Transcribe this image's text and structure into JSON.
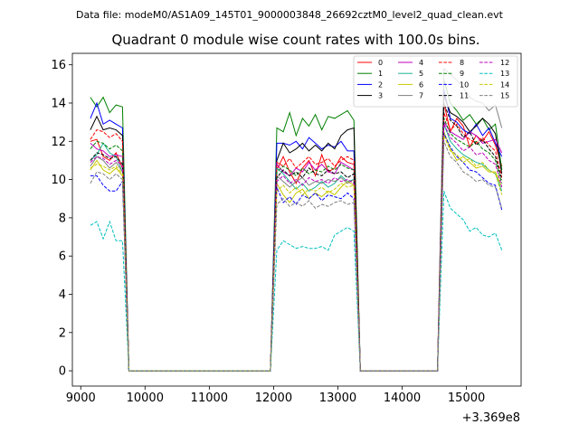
{
  "chart_data": {
    "type": "line",
    "suptitle": "Data file: modeM0/AS1A09_145T01_9000003848_26692cztM0_level2_quad_clean.evt",
    "title": "Quadrant 0 module wise count rates with 100.0s bins.",
    "xlabel": "",
    "ylabel": "",
    "x_offset_label": "+3.369e8",
    "xlim": [
      8870,
      15850
    ],
    "ylim": [
      -0.8,
      16.6
    ],
    "xticks": [
      9000,
      10000,
      11000,
      12000,
      13000,
      14000,
      15000
    ],
    "yticks": [
      0,
      2,
      4,
      6,
      8,
      10,
      12,
      14,
      16
    ],
    "grid": false,
    "legend_position": "top-right",
    "x": [
      9150,
      9250,
      9350,
      9450,
      9550,
      9650,
      9750,
      9850,
      9950,
      10050,
      10150,
      10250,
      10350,
      10450,
      10550,
      10650,
      10750,
      10850,
      10950,
      11050,
      11150,
      11250,
      11350,
      11450,
      11550,
      11650,
      11750,
      11850,
      11950,
      12050,
      12150,
      12250,
      12350,
      12450,
      12550,
      12650,
      12750,
      12850,
      12950,
      13050,
      13150,
      13250,
      13350,
      13450,
      13550,
      13650,
      13750,
      13850,
      13950,
      14050,
      14150,
      14250,
      14350,
      14450,
      14550,
      14650,
      14750,
      14850,
      14950,
      15050,
      15150,
      15250,
      15350,
      15450,
      15550
    ],
    "series": [
      {
        "name": "0",
        "color": "#ff0000",
        "dash": false,
        "values": [
          12.0,
          12.1,
          11.2,
          11.0,
          11.4,
          10.6,
          0,
          0,
          0,
          0,
          0,
          0,
          0,
          0,
          0,
          0,
          0,
          0,
          0,
          0,
          0,
          0,
          0,
          0,
          0,
          0,
          0,
          0,
          0,
          10.5,
          11.2,
          10.4,
          9.8,
          10.6,
          11.0,
          10.2,
          11.3,
          10.4,
          10.6,
          11.2,
          10.9,
          10.8,
          0,
          0,
          0,
          0,
          0,
          0,
          0,
          0,
          0,
          0,
          0,
          0,
          0,
          14.0,
          12.5,
          13.2,
          12.8,
          11.7,
          12.3,
          12.0,
          12.5,
          11.8,
          10.7
        ]
      },
      {
        "name": "1",
        "color": "#008000",
        "dash": false,
        "values": [
          14.3,
          13.8,
          14.3,
          13.5,
          13.9,
          13.8,
          0,
          0,
          0,
          0,
          0,
          0,
          0,
          0,
          0,
          0,
          0,
          0,
          0,
          0,
          0,
          0,
          0,
          0,
          0,
          0,
          0,
          0,
          0,
          12.7,
          12.5,
          13.5,
          12.3,
          13.2,
          12.8,
          13.4,
          12.6,
          13.3,
          13.2,
          13.4,
          13.6,
          13.1,
          0,
          0,
          0,
          0,
          0,
          0,
          0,
          0,
          0,
          0,
          0,
          0,
          0,
          15.2,
          14.0,
          13.6,
          13.1,
          13.4,
          12.9,
          13.2,
          12.6,
          12.9,
          10.5
        ]
      },
      {
        "name": "2",
        "color": "#0000ff",
        "dash": false,
        "values": [
          13.2,
          14.0,
          12.9,
          13.1,
          12.9,
          12.7,
          0,
          0,
          0,
          0,
          0,
          0,
          0,
          0,
          0,
          0,
          0,
          0,
          0,
          0,
          0,
          0,
          0,
          0,
          0,
          0,
          0,
          0,
          0,
          11.9,
          11.9,
          11.8,
          12.0,
          11.6,
          12.2,
          11.9,
          11.6,
          11.8,
          11.7,
          12.0,
          11.5,
          11.5,
          0,
          0,
          0,
          0,
          0,
          0,
          0,
          0,
          0,
          0,
          0,
          0,
          0,
          14.7,
          13.2,
          13.0,
          12.6,
          12.4,
          12.9,
          12.3,
          12.7,
          11.9,
          11.2
        ]
      },
      {
        "name": "3",
        "color": "#000000",
        "dash": false,
        "values": [
          12.6,
          13.3,
          12.6,
          12.7,
          12.6,
          12.3,
          0,
          0,
          0,
          0,
          0,
          0,
          0,
          0,
          0,
          0,
          0,
          0,
          0,
          0,
          0,
          0,
          0,
          0,
          0,
          0,
          0,
          0,
          0,
          11.0,
          11.9,
          11.4,
          11.6,
          11.9,
          11.5,
          11.8,
          11.5,
          11.9,
          11.6,
          12.3,
          12.6,
          12.7,
          0,
          0,
          0,
          0,
          0,
          0,
          0,
          0,
          0,
          0,
          0,
          0,
          0,
          14.4,
          13.5,
          13.3,
          13.0,
          12.5,
          12.8,
          13.2,
          12.9,
          12.4,
          10.3
        ]
      },
      {
        "name": "4",
        "color": "#bf00bf",
        "dash": false,
        "values": [
          11.9,
          11.6,
          11.5,
          11.2,
          11.3,
          11.2,
          0,
          0,
          0,
          0,
          0,
          0,
          0,
          0,
          0,
          0,
          0,
          0,
          0,
          0,
          0,
          0,
          0,
          0,
          0,
          0,
          0,
          0,
          0,
          10.8,
          10.4,
          10.2,
          10.6,
          10.4,
          10.9,
          10.5,
          10.8,
          10.4,
          10.3,
          10.9,
          10.7,
          10.5,
          0,
          0,
          0,
          0,
          0,
          0,
          0,
          0,
          0,
          0,
          0,
          0,
          0,
          13.0,
          12.5,
          12.3,
          12.1,
          12.5,
          12.3,
          11.9,
          12.0,
          12.1,
          11.4
        ]
      },
      {
        "name": "5",
        "color": "#1ab394",
        "dash": false,
        "values": [
          11.0,
          11.3,
          11.9,
          11.4,
          11.2,
          10.4,
          0,
          0,
          0,
          0,
          0,
          0,
          0,
          0,
          0,
          0,
          0,
          0,
          0,
          0,
          0,
          0,
          0,
          0,
          0,
          0,
          0,
          0,
          0,
          10.6,
          10.3,
          9.9,
          9.5,
          9.8,
          9.4,
          9.6,
          9.9,
          9.6,
          9.8,
          10.2,
          9.9,
          10.0,
          0,
          0,
          0,
          0,
          0,
          0,
          0,
          0,
          0,
          0,
          0,
          0,
          0,
          12.9,
          12.0,
          11.6,
          11.3,
          11.1,
          10.9,
          10.8,
          10.5,
          10.3,
          9.4
        ]
      },
      {
        "name": "6",
        "color": "#c8c800",
        "dash": false,
        "values": [
          10.5,
          11.0,
          10.5,
          10.3,
          10.6,
          10.2,
          0,
          0,
          0,
          0,
          0,
          0,
          0,
          0,
          0,
          0,
          0,
          0,
          0,
          0,
          0,
          0,
          0,
          0,
          0,
          0,
          0,
          0,
          0,
          9.8,
          9.2,
          8.8,
          9.3,
          9.5,
          9.0,
          9.3,
          9.1,
          9.4,
          9.2,
          9.6,
          9.9,
          9.7,
          0,
          0,
          0,
          0,
          0,
          0,
          0,
          0,
          0,
          0,
          0,
          0,
          0,
          12.5,
          11.6,
          11.0,
          11.2,
          10.9,
          10.6,
          10.7,
          10.4,
          10.4,
          9.6
        ]
      },
      {
        "name": "7",
        "color": "#808080",
        "dash": false,
        "values": [
          10.7,
          11.2,
          11.0,
          10.6,
          10.9,
          10.4,
          0,
          0,
          0,
          0,
          0,
          0,
          0,
          0,
          0,
          0,
          0,
          0,
          0,
          0,
          0,
          0,
          0,
          0,
          0,
          0,
          0,
          0,
          0,
          10.2,
          9.9,
          9.6,
          9.9,
          10.1,
          9.7,
          9.9,
          9.8,
          10.0,
          9.9,
          10.1,
          9.8,
          10.0,
          0,
          0,
          0,
          0,
          0,
          0,
          0,
          0,
          0,
          0,
          0,
          0,
          0,
          15.8,
          15.5,
          15.2,
          14.8,
          14.3,
          14.1,
          14.0,
          13.6,
          13.9,
          12.7
        ]
      },
      {
        "name": "8",
        "color": "#ff0000",
        "dash": true,
        "values": [
          12.1,
          12.6,
          12.5,
          12.2,
          12.4,
          12.0,
          0,
          0,
          0,
          0,
          0,
          0,
          0,
          0,
          0,
          0,
          0,
          0,
          0,
          0,
          0,
          0,
          0,
          0,
          0,
          0,
          0,
          0,
          0,
          10.9,
          10.7,
          11.1,
          10.6,
          10.9,
          11.2,
          10.8,
          10.9,
          11.1,
          10.7,
          11.0,
          11.2,
          11.0,
          0,
          0,
          0,
          0,
          0,
          0,
          0,
          0,
          0,
          0,
          0,
          0,
          0,
          13.5,
          12.6,
          12.9,
          12.4,
          12.1,
          11.9,
          12.2,
          11.8,
          11.5,
          10.1
        ]
      },
      {
        "name": "9",
        "color": "#008000",
        "dash": true,
        "values": [
          11.6,
          12.0,
          11.9,
          11.6,
          11.8,
          11.5,
          0,
          0,
          0,
          0,
          0,
          0,
          0,
          0,
          0,
          0,
          0,
          0,
          0,
          0,
          0,
          0,
          0,
          0,
          0,
          0,
          0,
          0,
          0,
          10.4,
          10.7,
          10.5,
          10.2,
          10.6,
          10.3,
          10.5,
          10.4,
          10.7,
          10.5,
          10.8,
          10.6,
          10.5,
          0,
          0,
          0,
          0,
          0,
          0,
          0,
          0,
          0,
          0,
          0,
          0,
          0,
          13.2,
          12.4,
          12.1,
          11.9,
          11.7,
          12.0,
          11.6,
          11.4,
          11.0,
          9.8
        ]
      },
      {
        "name": "10",
        "color": "#0000ff",
        "dash": true,
        "values": [
          10.2,
          10.2,
          9.7,
          9.4,
          9.4,
          9.9,
          0,
          0,
          0,
          0,
          0,
          0,
          0,
          0,
          0,
          0,
          0,
          0,
          0,
          0,
          0,
          0,
          0,
          0,
          0,
          0,
          0,
          0,
          0,
          9.6,
          8.8,
          9.1,
          8.7,
          9.2,
          9.0,
          9.3,
          8.9,
          9.2,
          9.1,
          9.0,
          9.3,
          9.0,
          0,
          0,
          0,
          0,
          0,
          0,
          0,
          0,
          0,
          0,
          0,
          0,
          0,
          12.4,
          11.7,
          11.2,
          10.9,
          10.5,
          10.4,
          10.1,
          9.8,
          9.7,
          8.4
        ]
      },
      {
        "name": "11",
        "color": "#000000",
        "dash": true,
        "values": [
          11.0,
          11.4,
          11.3,
          11.1,
          11.2,
          10.8,
          0,
          0,
          0,
          0,
          0,
          0,
          0,
          0,
          0,
          0,
          0,
          0,
          0,
          0,
          0,
          0,
          0,
          0,
          0,
          0,
          0,
          0,
          0,
          10.1,
          10.5,
          10.2,
          10.4,
          10.1,
          10.6,
          10.3,
          10.2,
          10.5,
          10.3,
          10.4,
          10.1,
          10.3,
          0,
          0,
          0,
          0,
          0,
          0,
          0,
          0,
          0,
          0,
          0,
          0,
          0,
          14.0,
          13.1,
          12.8,
          12.2,
          12.5,
          11.8,
          12.1,
          11.6,
          11.2,
          10.0
        ]
      },
      {
        "name": "12",
        "color": "#bf00bf",
        "dash": true,
        "values": [
          10.9,
          11.2,
          11.1,
          10.8,
          11.0,
          10.7,
          0,
          0,
          0,
          0,
          0,
          0,
          0,
          0,
          0,
          0,
          0,
          0,
          0,
          0,
          0,
          0,
          0,
          0,
          0,
          0,
          0,
          0,
          0,
          9.9,
          10.2,
          9.8,
          10.0,
          9.7,
          10.1,
          9.9,
          10.0,
          9.8,
          10.1,
          9.9,
          10.0,
          9.8,
          0,
          0,
          0,
          0,
          0,
          0,
          0,
          0,
          0,
          0,
          0,
          0,
          0,
          12.9,
          12.2,
          11.9,
          11.5,
          11.7,
          11.3,
          11.4,
          11.0,
          10.8,
          9.6
        ]
      },
      {
        "name": "13",
        "color": "#00bfbf",
        "dash": true,
        "values": [
          7.6,
          7.8,
          6.9,
          7.8,
          6.8,
          6.8,
          0,
          0,
          0,
          0,
          0,
          0,
          0,
          0,
          0,
          0,
          0,
          0,
          0,
          0,
          0,
          0,
          0,
          0,
          0,
          0,
          0,
          0,
          0,
          6.3,
          6.8,
          6.6,
          6.4,
          6.5,
          6.4,
          6.4,
          6.5,
          6.3,
          7.1,
          7.3,
          7.5,
          7.3,
          0,
          0,
          0,
          0,
          0,
          0,
          0,
          0,
          0,
          0,
          0,
          0,
          0,
          9.4,
          8.5,
          8.2,
          7.9,
          7.3,
          7.5,
          7.1,
          7.0,
          7.2,
          6.3
        ]
      },
      {
        "name": "14",
        "color": "#c8c800",
        "dash": true,
        "values": [
          10.6,
          10.8,
          10.7,
          10.5,
          10.7,
          10.3,
          0,
          0,
          0,
          0,
          0,
          0,
          0,
          0,
          0,
          0,
          0,
          0,
          0,
          0,
          0,
          0,
          0,
          0,
          0,
          0,
          0,
          0,
          0,
          9.4,
          9.7,
          9.3,
          9.6,
          9.2,
          9.5,
          9.4,
          9.6,
          9.3,
          9.5,
          9.8,
          9.6,
          9.7,
          0,
          0,
          0,
          0,
          0,
          0,
          0,
          0,
          0,
          0,
          0,
          0,
          0,
          12.3,
          11.5,
          11.3,
          10.9,
          11.1,
          10.7,
          10.9,
          10.5,
          10.3,
          9.2
        ]
      },
      {
        "name": "15",
        "color": "#808080",
        "dash": true,
        "values": [
          9.8,
          10.4,
          10.3,
          10.0,
          10.3,
          10.0,
          0,
          0,
          0,
          0,
          0,
          0,
          0,
          0,
          0,
          0,
          0,
          0,
          0,
          0,
          0,
          0,
          0,
          0,
          0,
          0,
          0,
          0,
          0,
          8.7,
          9.0,
          8.6,
          8.8,
          8.6,
          8.9,
          8.5,
          8.7,
          8.6,
          8.8,
          8.9,
          8.7,
          8.8,
          0,
          0,
          0,
          0,
          0,
          0,
          0,
          0,
          0,
          0,
          0,
          0,
          0,
          12.0,
          11.2,
          10.9,
          10.4,
          10.2,
          9.9,
          10.0,
          9.7,
          9.6,
          8.5
        ]
      }
    ]
  }
}
